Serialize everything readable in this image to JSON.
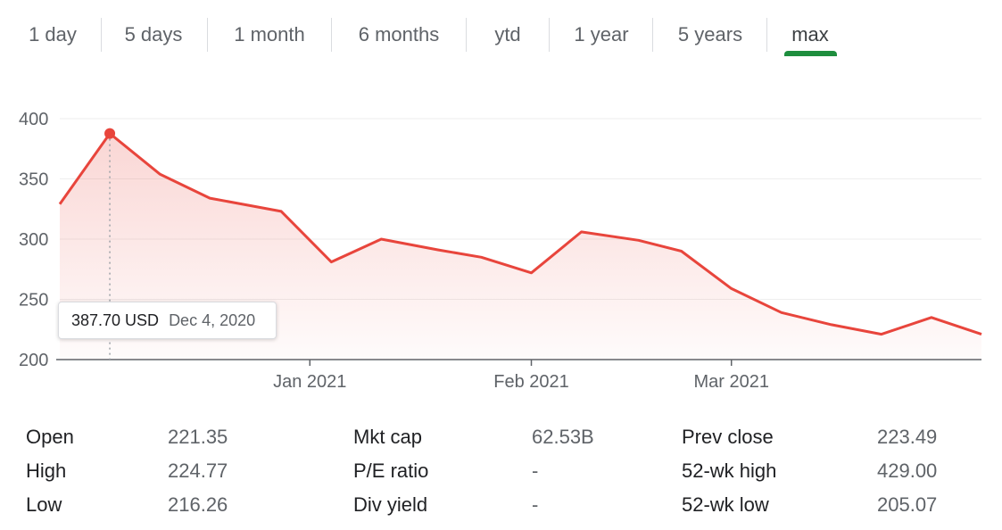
{
  "range_tabs": [
    {
      "label": "1 day"
    },
    {
      "label": "5 days"
    },
    {
      "label": "1 month"
    },
    {
      "label": "6 months"
    },
    {
      "label": "ytd"
    },
    {
      "label": "1 year"
    },
    {
      "label": "5 years"
    },
    {
      "label": "max",
      "active": true
    }
  ],
  "tooltip": {
    "price": "387.70 USD",
    "date": "Dec 4, 2020"
  },
  "colors": {
    "line": "#e8453c",
    "accent_tab": "#1e8e3e",
    "grid": "#eeeeee"
  },
  "chart_data": {
    "type": "area",
    "title": "",
    "xlabel": "",
    "ylabel": "",
    "ylim": [
      200,
      400
    ],
    "y_ticks": [
      200,
      250,
      300,
      350,
      400
    ],
    "x_tick_labels": [
      "Jan 2021",
      "Feb 2021",
      "Mar 2021"
    ],
    "grid": true,
    "series": [
      {
        "x": [
          "2020-11-27",
          "2020-12-04",
          "2020-12-11",
          "2020-12-18",
          "2020-12-28",
          "2021-01-04",
          "2021-01-11",
          "2021-01-19",
          "2021-01-25",
          "2021-02-01",
          "2021-02-08",
          "2021-02-16",
          "2021-02-22",
          "2021-03-01",
          "2021-03-08",
          "2021-03-15",
          "2021-03-22",
          "2021-03-29",
          "2021-04-05"
        ],
        "values": [
          329,
          387.7,
          354,
          334,
          323,
          281,
          300,
          291,
          285,
          272,
          306,
          299,
          290,
          259,
          239,
          229,
          221,
          235,
          221
        ]
      }
    ],
    "highlight": {
      "x": "2020-12-04",
      "value": 387.7
    }
  },
  "stats": [
    {
      "label": "Open",
      "value": "221.35"
    },
    {
      "label": "High",
      "value": "224.77"
    },
    {
      "label": "Low",
      "value": "216.26"
    },
    {
      "label": "Mkt cap",
      "value": "62.53B"
    },
    {
      "label": "P/E ratio",
      "value": "-"
    },
    {
      "label": "Div yield",
      "value": "-"
    },
    {
      "label": "Prev close",
      "value": "223.49"
    },
    {
      "label": "52-wk high",
      "value": "429.00"
    },
    {
      "label": "52-wk low",
      "value": "205.07"
    }
  ]
}
